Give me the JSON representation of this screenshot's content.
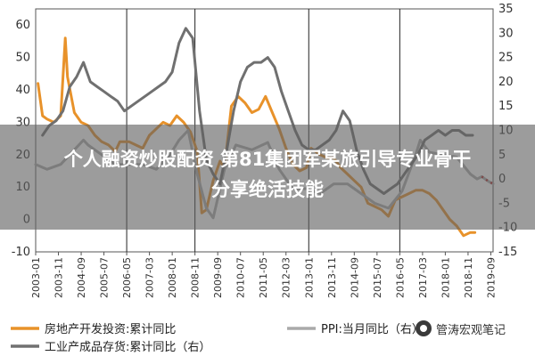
{
  "chart_data": {
    "type": "line",
    "title": "",
    "xlabel": "",
    "ylabel_left": "",
    "ylabel_right": "",
    "ylim_left": [
      -10,
      65
    ],
    "ylim_right": [
      -15,
      35
    ],
    "yticks_left": [
      -10,
      0,
      10,
      20,
      30,
      40,
      50,
      60
    ],
    "yticks_right": [
      -15,
      -10,
      -5,
      0,
      5,
      10,
      15,
      20,
      25,
      30,
      35
    ],
    "x_start": 2003.0,
    "x_end": 2019.75,
    "x_tick_labels": [
      "2003-01",
      "2003-11",
      "2004-09",
      "2005-07",
      "2006-05",
      "2007-03",
      "2008-01",
      "2008-11",
      "2009-09",
      "2010-07",
      "2011-05",
      "2012-03",
      "2013-01",
      "2013-11",
      "2014-09",
      "2015-07",
      "2016-05",
      "2017-03",
      "2018-01",
      "2018-11",
      "2019-09"
    ],
    "vertical_lines": [
      "2006-05",
      "2008-11",
      "2013-01",
      "2016-05"
    ],
    "series": [
      {
        "name": "房地产开发投资:累计同比",
        "axis": "left",
        "color": "#e8922a",
        "x": [
          "2003-02",
          "2003-04",
          "2003-06",
          "2003-09",
          "2003-12",
          "2004-02",
          "2004-03",
          "2004-06",
          "2004-09",
          "2004-12",
          "2005-03",
          "2005-06",
          "2005-09",
          "2005-12",
          "2006-02",
          "2006-06",
          "2006-09",
          "2006-12",
          "2007-03",
          "2007-06",
          "2007-09",
          "2007-12",
          "2008-03",
          "2008-06",
          "2008-09",
          "2008-12",
          "2009-02",
          "2009-04",
          "2009-07",
          "2009-10",
          "2009-12",
          "2010-03",
          "2010-06",
          "2010-09",
          "2010-12",
          "2011-03",
          "2011-06",
          "2011-09",
          "2011-12",
          "2012-03",
          "2012-06",
          "2012-09",
          "2012-12",
          "2013-02",
          "2013-04",
          "2013-06",
          "2013-09",
          "2013-12",
          "2014-03",
          "2014-06",
          "2014-09",
          "2014-12",
          "2015-03",
          "2015-06",
          "2015-09",
          "2015-12",
          "2016-03",
          "2016-06",
          "2016-09",
          "2016-12",
          "2017-03",
          "2017-06",
          "2017-09",
          "2017-12",
          "2018-03",
          "2018-06",
          "2018-09",
          "2018-12",
          "2019-01",
          "2019-02"
        ],
        "y": [
          42,
          32,
          31,
          30,
          32,
          56,
          44,
          33,
          30,
          29,
          26,
          24,
          23,
          21,
          24,
          24,
          23,
          22,
          26,
          28,
          30,
          29,
          32,
          30,
          27,
          21,
          2,
          3,
          12,
          18,
          16,
          35,
          38,
          36,
          33,
          34,
          38,
          33,
          28,
          22,
          17,
          15,
          16,
          22,
          21,
          20,
          19,
          19,
          16,
          14,
          12,
          10,
          5,
          4,
          3,
          1,
          6,
          7,
          8,
          9,
          9,
          8,
          6,
          3,
          0,
          -2,
          -5,
          -4,
          -4,
          -4
        ]
      },
      {
        "name": "PPI:当月同比",
        "axis": "right",
        "color": "#aaaaaa",
        "x": [
          "2003-01",
          "2003-06",
          "2003-12",
          "2004-06",
          "2004-10",
          "2004-12",
          "2005-06",
          "2005-12",
          "2006-06",
          "2006-12",
          "2007-06",
          "2007-12",
          "2008-04",
          "2008-08",
          "2008-12",
          "2009-04",
          "2009-07",
          "2009-12",
          "2010-05",
          "2010-12",
          "2011-07",
          "2011-12",
          "2012-06",
          "2012-12",
          "2013-06",
          "2013-12",
          "2014-06",
          "2014-12",
          "2015-06",
          "2015-12",
          "2016-06",
          "2016-12",
          "2017-02",
          "2017-06",
          "2017-12",
          "2018-06",
          "2018-12",
          "2019-03",
          "2019-05",
          "2019-08",
          "2019-10"
        ],
        "y": [
          3,
          2,
          3,
          6,
          8,
          7,
          5,
          3,
          3,
          3,
          2,
          5,
          8,
          10,
          1,
          -6,
          -8,
          2,
          7,
          6,
          7.5,
          2,
          -2,
          -2,
          -3,
          -1,
          -1,
          -3,
          -5,
          -6,
          -2.5,
          5,
          8,
          5.5,
          5,
          4.5,
          1,
          0,
          0.5,
          -0.5,
          -1
        ]
      },
      {
        "name": "工业产成品存货:累计同比（右）",
        "axis": "right",
        "color": "#707070",
        "x": [
          "2003-04",
          "2003-07",
          "2003-10",
          "2004-01",
          "2004-04",
          "2004-07",
          "2004-10",
          "2005-01",
          "2005-04",
          "2005-07",
          "2005-10",
          "2006-01",
          "2006-04",
          "2006-07",
          "2006-10",
          "2007-01",
          "2007-04",
          "2007-07",
          "2007-10",
          "2008-01",
          "2008-04",
          "2008-07",
          "2008-10",
          "2009-01",
          "2009-04",
          "2009-07",
          "2009-10",
          "2010-01",
          "2010-04",
          "2010-07",
          "2010-10",
          "2011-01",
          "2011-04",
          "2011-07",
          "2011-10",
          "2012-01",
          "2012-04",
          "2012-07",
          "2012-10",
          "2013-01",
          "2013-04",
          "2013-07",
          "2013-10",
          "2014-01",
          "2014-04",
          "2014-07",
          "2014-10",
          "2015-01",
          "2015-04",
          "2015-07",
          "2015-10",
          "2016-01",
          "2016-04",
          "2016-07",
          "2016-10",
          "2017-01",
          "2017-04",
          "2017-07",
          "2017-10",
          "2018-01",
          "2018-04",
          "2018-07",
          "2018-10",
          "2019-01"
        ],
        "y": [
          9,
          11,
          12,
          14,
          19,
          21,
          24,
          20,
          19,
          18,
          17,
          16,
          14,
          15,
          16,
          17,
          18,
          19,
          20,
          22,
          28,
          31,
          29,
          14,
          4,
          1,
          -1,
          6,
          14,
          20,
          23,
          24,
          24,
          25,
          23,
          18,
          14,
          10,
          7,
          6,
          6,
          7,
          8,
          10,
          14,
          12,
          6,
          2,
          -1,
          -2,
          -3,
          -2,
          -1,
          1,
          3,
          5,
          8,
          9,
          10,
          9,
          10,
          10,
          9,
          9
        ]
      }
    ],
    "legend": [
      {
        "label": "房地产开发投资:累计同比",
        "color": "#e8922a",
        "style": "solid"
      },
      {
        "label": "PPI:当月同比（右）",
        "color": "#aaaaaa",
        "style": "solid"
      },
      {
        "label": "工业产成品存货:累计同比（右）",
        "color": "#707070",
        "style": "solid"
      }
    ],
    "legend_placement": "bottom"
  },
  "overlay": {
    "banner_line1": "个人融资炒股配资 第81集团军某旅引导专业骨干",
    "banner_line2": "分享绝活技能",
    "watermark": "管涛宏观笔记"
  }
}
